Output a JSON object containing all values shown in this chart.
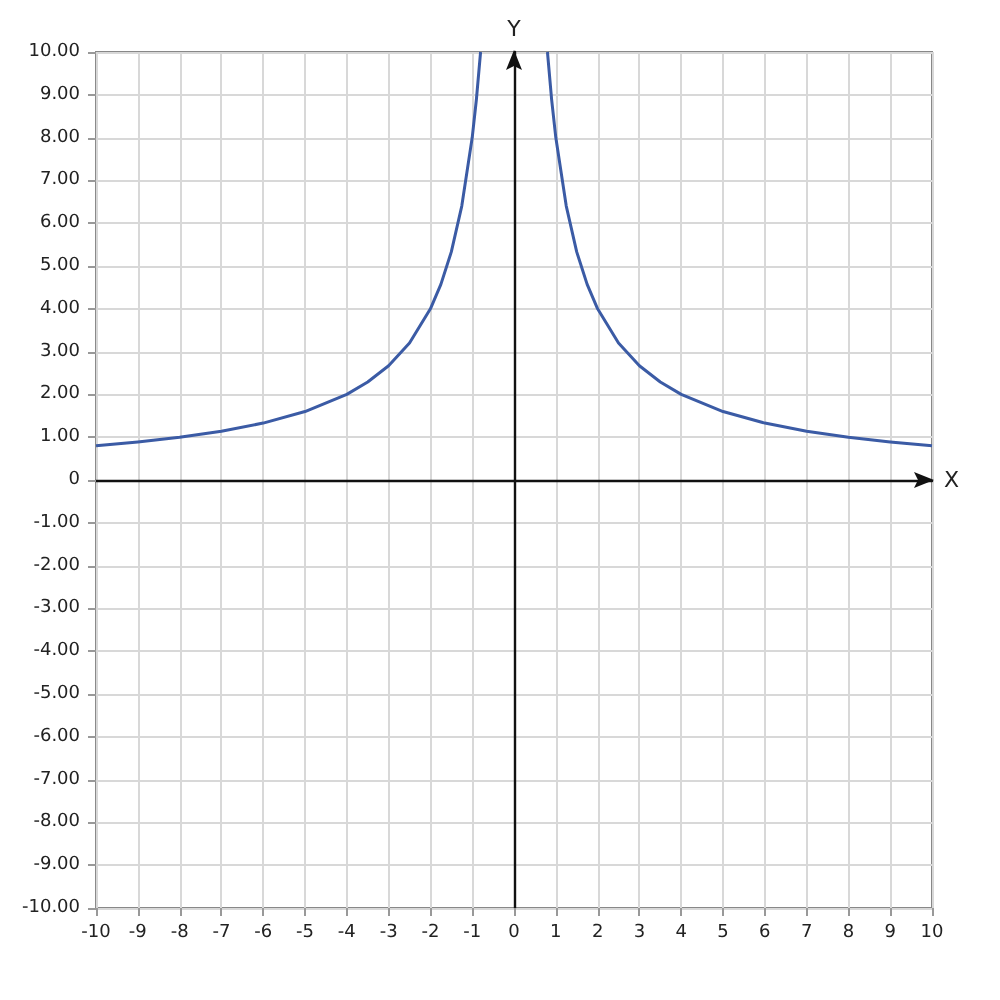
{
  "chart_data": {
    "type": "line",
    "xlabel": "X",
    "ylabel": "Y",
    "x": [
      -10,
      -9,
      -8,
      -7,
      -6,
      -5,
      -4,
      -3.5,
      -3,
      -2.5,
      -2,
      -1.75,
      -1.5,
      -1.25,
      -1,
      -0.9,
      -0.8,
      0,
      0.8,
      0.9,
      1,
      1.25,
      1.5,
      1.75,
      2,
      2.5,
      3,
      3.5,
      4,
      5,
      6,
      7,
      8,
      9,
      10
    ],
    "series": [
      {
        "color": "#3b5ba5",
        "values": [
          0.8,
          0.89,
          1.0,
          1.14,
          1.33,
          1.6,
          2.0,
          2.29,
          2.67,
          3.2,
          4.0,
          4.57,
          5.33,
          6.4,
          8.0,
          8.89,
          10,
          null,
          10,
          8.89,
          8.0,
          6.4,
          5.33,
          4.57,
          4.0,
          3.2,
          2.67,
          2.29,
          2.0,
          1.6,
          1.33,
          1.14,
          1.0,
          0.89,
          0.8
        ]
      }
    ],
    "xlim": [
      -10,
      10
    ],
    "xticks": [
      -10,
      -9,
      -8,
      -7,
      -6,
      -5,
      -4,
      -3,
      -2,
      -1,
      0,
      1,
      2,
      3,
      4,
      5,
      6,
      7,
      8,
      9,
      10
    ],
    "ylim": [
      -10,
      10
    ],
    "yticks": [
      {
        "value": -10,
        "label": "-10.00"
      },
      {
        "value": -9,
        "label": "-9.00"
      },
      {
        "value": -8,
        "label": "-8.00"
      },
      {
        "value": -7,
        "label": "-7.00"
      },
      {
        "value": -6,
        "label": "-6.00"
      },
      {
        "value": -5,
        "label": "-5.00"
      },
      {
        "value": -4,
        "label": "-4.00"
      },
      {
        "value": -3,
        "label": "-3.00"
      },
      {
        "value": -2,
        "label": "-2.00"
      },
      {
        "value": -1,
        "label": "-1.00"
      },
      0,
      {
        "value": 1,
        "label": "1.00"
      },
      {
        "value": 2,
        "label": "2.00"
      },
      {
        "value": 3,
        "label": "3.00"
      },
      {
        "value": 4,
        "label": "4.00"
      },
      {
        "value": 5,
        "label": "5.00"
      },
      {
        "value": 6,
        "label": "6.00"
      },
      {
        "value": 7,
        "label": "7.00"
      },
      {
        "value": 8,
        "label": "8.00"
      },
      {
        "value": 9,
        "label": "9.00"
      },
      {
        "value": 10,
        "label": "10.00"
      }
    ],
    "grid": true,
    "marker": "none",
    "line_style": "solid"
  }
}
